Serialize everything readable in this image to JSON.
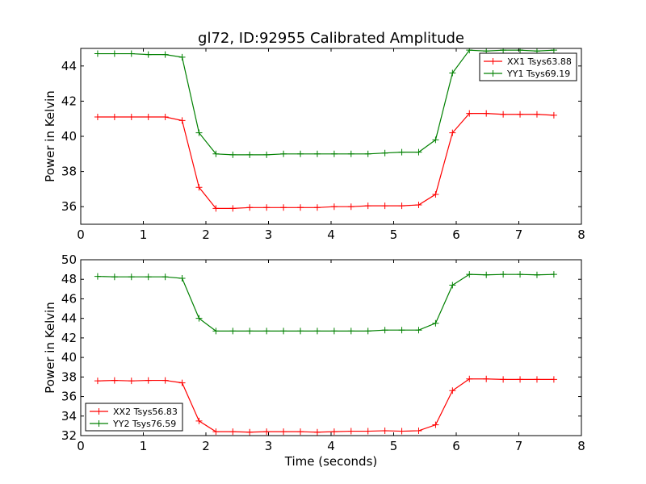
{
  "chart_data": [
    {
      "type": "line",
      "title": "gl72, ID:92955 Calibrated Amplitude",
      "xlabel": "",
      "ylabel": "Power in Kelvin",
      "xlim": [
        0,
        8
      ],
      "ylim": [
        35,
        45
      ],
      "xticks": [
        0,
        1,
        2,
        3,
        4,
        5,
        6,
        7,
        8
      ],
      "yticks": [
        36,
        38,
        40,
        42,
        44
      ],
      "grid": false,
      "legend_position": "top-right",
      "x": [
        0.27,
        0.54,
        0.81,
        1.08,
        1.35,
        1.62,
        1.89,
        2.16,
        2.43,
        2.7,
        2.97,
        3.24,
        3.51,
        3.78,
        4.05,
        4.32,
        4.59,
        4.86,
        5.13,
        5.4,
        5.67,
        5.94,
        6.21,
        6.48,
        6.75,
        7.02,
        7.29,
        7.56
      ],
      "series": [
        {
          "name": "XX1 Tsys63.88",
          "color": "#ff0000",
          "values": [
            41.1,
            41.1,
            41.1,
            41.1,
            41.1,
            40.9,
            37.1,
            35.9,
            35.9,
            35.95,
            35.95,
            35.95,
            35.95,
            35.95,
            36.0,
            36.0,
            36.05,
            36.05,
            36.05,
            36.1,
            36.7,
            40.2,
            41.3,
            41.3,
            41.25,
            41.25,
            41.25,
            41.2
          ]
        },
        {
          "name": "YY1 Tsys69.19",
          "color": "#008000",
          "values": [
            44.7,
            44.7,
            44.7,
            44.65,
            44.65,
            44.5,
            40.2,
            39.0,
            38.95,
            38.95,
            38.95,
            39.0,
            39.0,
            39.0,
            39.0,
            39.0,
            39.0,
            39.05,
            39.1,
            39.1,
            39.8,
            43.6,
            44.9,
            44.85,
            44.9,
            44.9,
            44.85,
            44.9
          ]
        }
      ]
    },
    {
      "type": "line",
      "title": "",
      "xlabel": "Time (seconds)",
      "ylabel": "Power in Kelvin",
      "xlim": [
        0,
        8
      ],
      "ylim": [
        32,
        50
      ],
      "xticks": [
        0,
        1,
        2,
        3,
        4,
        5,
        6,
        7,
        8
      ],
      "yticks": [
        32,
        34,
        36,
        38,
        40,
        42,
        44,
        46,
        48,
        50
      ],
      "grid": false,
      "legend_position": "bottom-left",
      "x": [
        0.27,
        0.54,
        0.81,
        1.08,
        1.35,
        1.62,
        1.89,
        2.16,
        2.43,
        2.7,
        2.97,
        3.24,
        3.51,
        3.78,
        4.05,
        4.32,
        4.59,
        4.86,
        5.13,
        5.4,
        5.67,
        5.94,
        6.21,
        6.48,
        6.75,
        7.02,
        7.29,
        7.56
      ],
      "series": [
        {
          "name": "XX2 Tsys56.83",
          "color": "#ff0000",
          "values": [
            37.6,
            37.65,
            37.6,
            37.65,
            37.65,
            37.4,
            33.5,
            32.4,
            32.4,
            32.35,
            32.4,
            32.4,
            32.4,
            32.35,
            32.4,
            32.45,
            32.45,
            32.5,
            32.45,
            32.5,
            33.1,
            36.6,
            37.8,
            37.8,
            37.75,
            37.75,
            37.75,
            37.75
          ]
        },
        {
          "name": "YY2 Tsys76.59",
          "color": "#008000",
          "values": [
            48.3,
            48.25,
            48.25,
            48.25,
            48.25,
            48.1,
            44.0,
            42.7,
            42.7,
            42.7,
            42.7,
            42.7,
            42.7,
            42.7,
            42.7,
            42.7,
            42.7,
            42.8,
            42.8,
            42.8,
            43.5,
            47.4,
            48.5,
            48.45,
            48.5,
            48.5,
            48.45,
            48.5
          ]
        }
      ]
    }
  ]
}
